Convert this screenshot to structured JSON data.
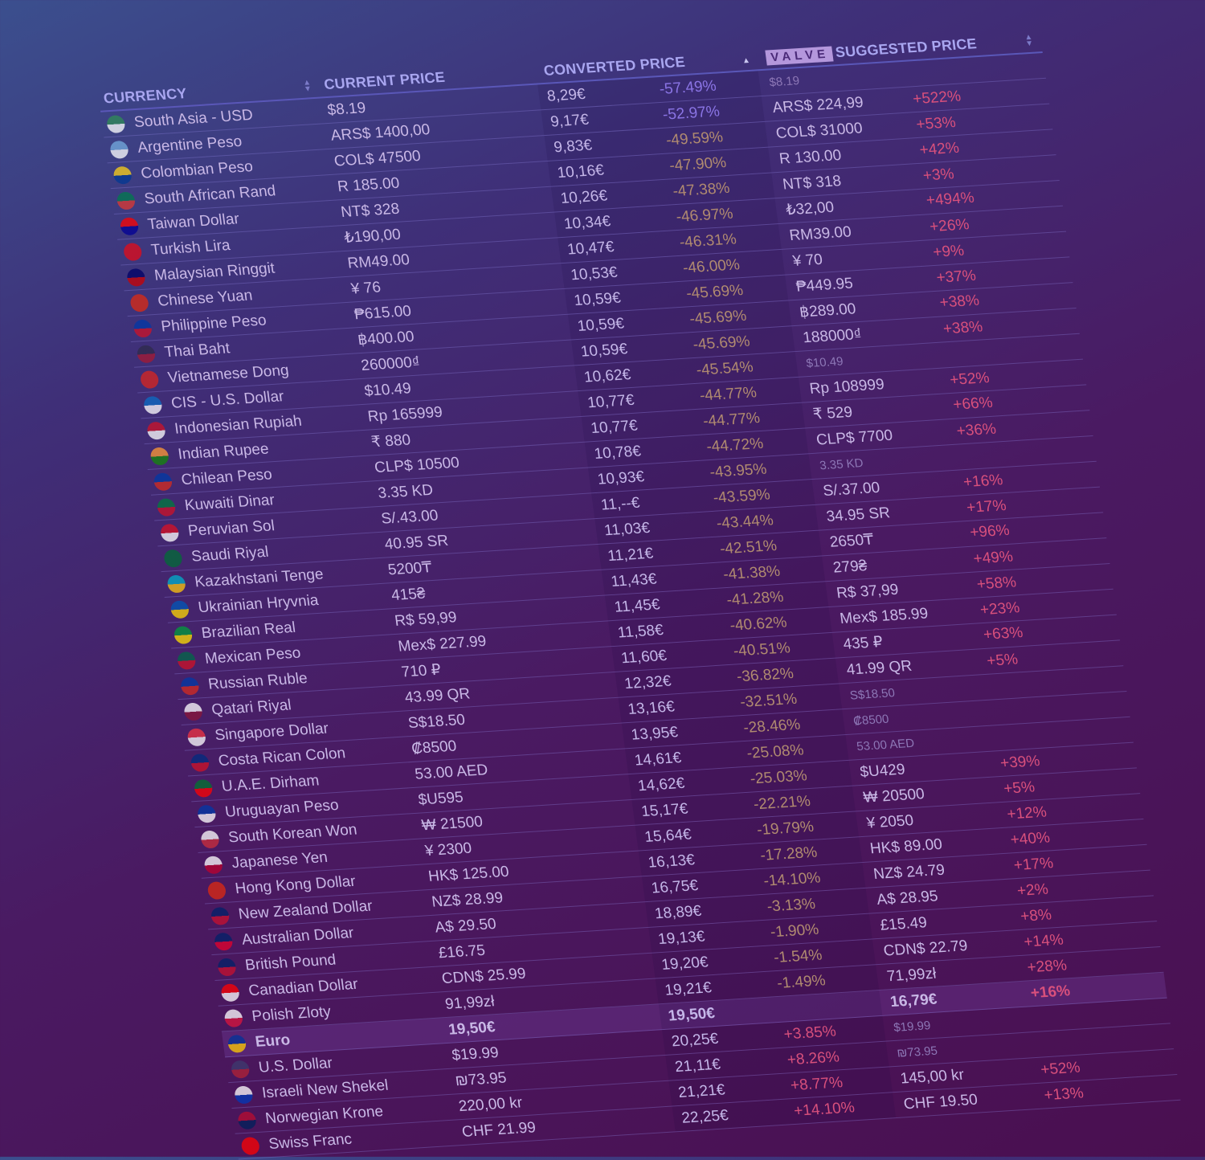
{
  "headers": {
    "currency": "CURRENCY",
    "current": "CURRENT PRICE",
    "converted": "CONVERTED PRICE",
    "valve_logo": "VALVE",
    "valve": "SUGGESTED PRICE"
  },
  "colors": {
    "negative": "#b08a70",
    "negative_strong": "#8a74e4",
    "positive": "#d8507c",
    "header": "#a9a6f0"
  },
  "rows": [
    {
      "currency": "South Asia - USD",
      "flag": [
        "#2e8b57",
        "#ffffff"
      ],
      "current": "$8.19",
      "converted": "8,29€",
      "pct": "-57.49%",
      "valve": "$8.19",
      "valve_muted": true,
      "valve_pct": ""
    },
    {
      "currency": "Argentine Peso",
      "flag": [
        "#74acdf",
        "#ffffff"
      ],
      "current": "ARS$ 1400,00",
      "converted": "9,17€",
      "pct": "-52.97%",
      "valve": "ARS$ 224,99",
      "valve_pct": "+522%"
    },
    {
      "currency": "Colombian Peso",
      "flag": [
        "#fcd116",
        "#003893"
      ],
      "current": "COL$ 47500",
      "converted": "9,83€",
      "pct": "-49.59%",
      "valve": "COL$ 31000",
      "valve_pct": "+53%"
    },
    {
      "currency": "South African Rand",
      "flag": [
        "#007a4d",
        "#de3831"
      ],
      "current": "R 185.00",
      "converted": "10,16€",
      "pct": "-47.90%",
      "valve": "R 130.00",
      "valve_pct": "+42%"
    },
    {
      "currency": "Taiwan Dollar",
      "flag": [
        "#fe0000",
        "#000095"
      ],
      "current": "NT$ 328",
      "converted": "10,26€",
      "pct": "-47.38%",
      "valve": "NT$ 318",
      "valve_pct": "+3%"
    },
    {
      "currency": "Turkish Lira",
      "flag": [
        "#e30a17",
        "#e30a17"
      ],
      "current": "₺190,00",
      "converted": "10,34€",
      "pct": "-46.97%",
      "valve": "₺32,00",
      "valve_pct": "+494%"
    },
    {
      "currency": "Malaysian Ringgit",
      "flag": [
        "#010066",
        "#cc0001"
      ],
      "current": "RM49.00",
      "converted": "10,47€",
      "pct": "-46.31%",
      "valve": "RM39.00",
      "valve_pct": "+26%"
    },
    {
      "currency": "Chinese Yuan",
      "flag": [
        "#de2910",
        "#de2910"
      ],
      "current": "¥ 76",
      "converted": "10,53€",
      "pct": "-46.00%",
      "valve": "¥ 70",
      "valve_pct": "+9%"
    },
    {
      "currency": "Philippine Peso",
      "flag": [
        "#0038a8",
        "#ce1126"
      ],
      "current": "₱615.00",
      "converted": "10,59€",
      "pct": "-45.69%",
      "valve": "₱449.95",
      "valve_pct": "+37%"
    },
    {
      "currency": "Thai Baht",
      "flag": [
        "#2d2a4a",
        "#a51931"
      ],
      "current": "฿400.00",
      "converted": "10,59€",
      "pct": "-45.69%",
      "valve": "฿289.00",
      "valve_pct": "+38%"
    },
    {
      "currency": "Vietnamese Dong",
      "flag": [
        "#da251d",
        "#da251d"
      ],
      "current": "260000₫",
      "converted": "10,59€",
      "pct": "-45.69%",
      "valve": "188000₫",
      "valve_pct": "+38%"
    },
    {
      "currency": "CIS - U.S. Dollar",
      "flag": [
        "#0a6cc4",
        "#ffffff"
      ],
      "current": "$10.49",
      "converted": "10,62€",
      "pct": "-45.54%",
      "valve": "$10.49",
      "valve_muted": true,
      "valve_pct": ""
    },
    {
      "currency": "Indonesian Rupiah",
      "flag": [
        "#ce1126",
        "#ffffff"
      ],
      "current": "Rp 165999",
      "converted": "10,77€",
      "pct": "-44.77%",
      "valve": "Rp 108999",
      "valve_pct": "+52%"
    },
    {
      "currency": "Indian Rupee",
      "flag": [
        "#ff9933",
        "#138808"
      ],
      "current": "₹ 880",
      "converted": "10,77€",
      "pct": "-44.77%",
      "valve": "₹ 529",
      "valve_pct": "+66%"
    },
    {
      "currency": "Chilean Peso",
      "flag": [
        "#0039a6",
        "#d52b1e"
      ],
      "current": "CLP$ 10500",
      "converted": "10,78€",
      "pct": "-44.72%",
      "valve": "CLP$ 7700",
      "valve_pct": "+36%"
    },
    {
      "currency": "Kuwaiti Dinar",
      "flag": [
        "#007a3d",
        "#ce1126"
      ],
      "current": "3.35 KD",
      "converted": "10,93€",
      "pct": "-43.95%",
      "valve": "3.35 KD",
      "valve_muted": true,
      "valve_pct": ""
    },
    {
      "currency": "Peruvian Sol",
      "flag": [
        "#d91023",
        "#ffffff"
      ],
      "current": "S/.43.00",
      "converted": "11,--€",
      "pct": "-43.59%",
      "valve": "S/.37.00",
      "valve_pct": "+16%"
    },
    {
      "currency": "Saudi Riyal",
      "flag": [
        "#006c35",
        "#006c35"
      ],
      "current": "40.95 SR",
      "converted": "11,03€",
      "pct": "-43.44%",
      "valve": "34.95 SR",
      "valve_pct": "+17%"
    },
    {
      "currency": "Kazakhstani Tenge",
      "flag": [
        "#00afca",
        "#fec50c"
      ],
      "current": "5200₸",
      "converted": "11,21€",
      "pct": "-42.51%",
      "valve": "2650₸",
      "valve_pct": "+96%"
    },
    {
      "currency": "Ukrainian Hryvnia",
      "flag": [
        "#0057b7",
        "#ffd700"
      ],
      "current": "415₴",
      "converted": "11,43€",
      "pct": "-41.38%",
      "valve": "279₴",
      "valve_pct": "+49%"
    },
    {
      "currency": "Brazilian Real",
      "flag": [
        "#009c3b",
        "#ffdf00"
      ],
      "current": "R$ 59,99",
      "converted": "11,45€",
      "pct": "-41.28%",
      "valve": "R$ 37,99",
      "valve_pct": "+58%"
    },
    {
      "currency": "Mexican Peso",
      "flag": [
        "#006847",
        "#ce1126"
      ],
      "current": "Mex$ 227.99",
      "converted": "11,58€",
      "pct": "-40.62%",
      "valve": "Mex$ 185.99",
      "valve_pct": "+23%"
    },
    {
      "currency": "Russian Ruble",
      "flag": [
        "#0039a6",
        "#d52b1e"
      ],
      "current": "710 ₽",
      "converted": "11,60€",
      "pct": "-40.51%",
      "valve": "435 ₽",
      "valve_pct": "+63%"
    },
    {
      "currency": "Qatari Riyal",
      "flag": [
        "#ffffff",
        "#8a1538"
      ],
      "current": "43.99 QR",
      "converted": "12,32€",
      "pct": "-36.82%",
      "valve": "41.99 QR",
      "valve_pct": "+5%"
    },
    {
      "currency": "Singapore Dollar",
      "flag": [
        "#ef3340",
        "#ffffff"
      ],
      "current": "S$18.50",
      "converted": "13,16€",
      "pct": "-32.51%",
      "valve": "S$18.50",
      "valve_muted": true,
      "valve_pct": ""
    },
    {
      "currency": "Costa Rican Colon",
      "flag": [
        "#002b7f",
        "#ce1126"
      ],
      "current": "₡8500",
      "converted": "13,95€",
      "pct": "-28.46%",
      "valve": "₡8500",
      "valve_muted": true,
      "valve_pct": ""
    },
    {
      "currency": "U.A.E. Dirham",
      "flag": [
        "#00732f",
        "#ff0000"
      ],
      "current": "53.00 AED",
      "converted": "14,61€",
      "pct": "-25.08%",
      "valve": "53.00 AED",
      "valve_muted": true,
      "valve_pct": ""
    },
    {
      "currency": "Uruguayan Peso",
      "flag": [
        "#0038a8",
        "#ffffff"
      ],
      "current": "$U595",
      "converted": "14,62€",
      "pct": "-25.03%",
      "valve": "$U429",
      "valve_pct": "+39%"
    },
    {
      "currency": "South Korean Won",
      "flag": [
        "#ffffff",
        "#cd2e3a"
      ],
      "current": "₩ 21500",
      "converted": "15,17€",
      "pct": "-22.21%",
      "valve": "₩ 20500",
      "valve_pct": "+5%"
    },
    {
      "currency": "Japanese Yen",
      "flag": [
        "#ffffff",
        "#bc002d"
      ],
      "current": "¥ 2300",
      "converted": "15,64€",
      "pct": "-19.79%",
      "valve": "¥ 2050",
      "valve_pct": "+12%"
    },
    {
      "currency": "Hong Kong Dollar",
      "flag": [
        "#de2910",
        "#de2910"
      ],
      "current": "HK$ 125.00",
      "converted": "16,13€",
      "pct": "-17.28%",
      "valve": "HK$ 89.00",
      "valve_pct": "+40%"
    },
    {
      "currency": "New Zealand Dollar",
      "flag": [
        "#012169",
        "#c8102e"
      ],
      "current": "NZ$ 28.99",
      "converted": "16,75€",
      "pct": "-14.10%",
      "valve": "NZ$ 24.79",
      "valve_pct": "+17%"
    },
    {
      "currency": "Australian Dollar",
      "flag": [
        "#012169",
        "#e4002b"
      ],
      "current": "A$ 29.50",
      "converted": "18,89€",
      "pct": "-3.13%",
      "valve": "A$ 28.95",
      "valve_pct": "+2%"
    },
    {
      "currency": "British Pound",
      "flag": [
        "#012169",
        "#c8102e"
      ],
      "current": "£16.75",
      "converted": "19,13€",
      "pct": "-1.90%",
      "valve": "£15.49",
      "valve_pct": "+8%"
    },
    {
      "currency": "Canadian Dollar",
      "flag": [
        "#ff0000",
        "#ffffff"
      ],
      "current": "CDN$ 25.99",
      "converted": "19,20€",
      "pct": "-1.54%",
      "valve": "CDN$ 22.79",
      "valve_pct": "+14%"
    },
    {
      "currency": "Polish Zloty",
      "flag": [
        "#ffffff",
        "#dc143c"
      ],
      "current": "91,99zł",
      "converted": "19,21€",
      "pct": "-1.49%",
      "valve": "71,99zł",
      "valve_pct": "+28%"
    },
    {
      "currency": "Euro",
      "flag": [
        "#003399",
        "#ffcc00"
      ],
      "current": "19,50€",
      "converted": "19,50€",
      "pct": "",
      "highlight": true,
      "valve": "16,79€",
      "valve_pct": "+16%"
    },
    {
      "currency": "U.S. Dollar",
      "flag": [
        "#3c3b6e",
        "#b22234"
      ],
      "current": "$19.99",
      "converted": "20,25€",
      "pct": "+3.85%",
      "valve": "$19.99",
      "valve_muted": true,
      "valve_pct": ""
    },
    {
      "currency": "Israeli New Shekel",
      "flag": [
        "#ffffff",
        "#0038b8"
      ],
      "current": "₪73.95",
      "converted": "21,11€",
      "pct": "+8.26%",
      "valve": "₪73.95",
      "valve_muted": true,
      "valve_pct": ""
    },
    {
      "currency": "Norwegian Krone",
      "flag": [
        "#ba0c2f",
        "#00205b"
      ],
      "current": "220,00 kr",
      "converted": "21,21€",
      "pct": "+8.77%",
      "valve": "145,00 kr",
      "valve_pct": "+52%"
    },
    {
      "currency": "Swiss Franc",
      "flag": [
        "#ff0000",
        "#ff0000"
      ],
      "current": "CHF 21.99",
      "converted": "22,25€",
      "pct": "+14.10%",
      "valve": "CHF 19.50",
      "valve_pct": "+13%"
    }
  ]
}
